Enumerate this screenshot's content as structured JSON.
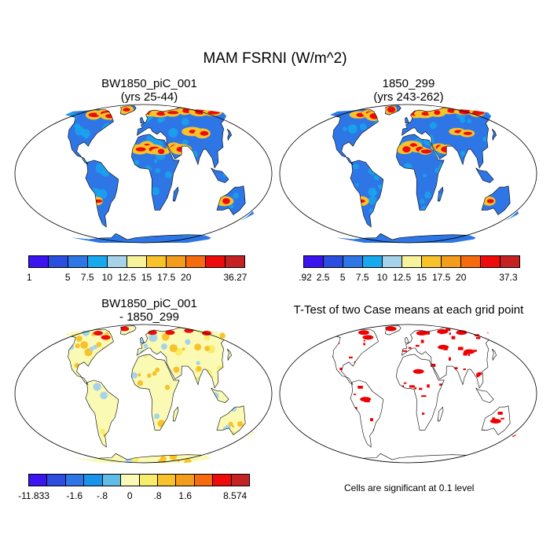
{
  "figure": {
    "title": "MAM FSRNI (W/m^2)"
  },
  "panels": [
    {
      "id": "p1",
      "title_line1": "BW1850_piC_001",
      "title_line2": "(yrs 25-44)",
      "type": "field"
    },
    {
      "id": "p2",
      "title_line1": "1850_299",
      "title_line2": "(yrs 243-262)",
      "type": "field"
    },
    {
      "id": "p3",
      "title_line1": "BW1850_piC_001",
      "title_line2": "- 1850_299",
      "type": "difference"
    },
    {
      "id": "p4",
      "title_line1": "T-Test of two Case means at each grid point",
      "title_line2": "",
      "type": "significance"
    }
  ],
  "colorbars": {
    "top_left": {
      "colors": [
        "#3b14f0",
        "#2b4ee0",
        "#2e76e6",
        "#17a8ee",
        "#a6d3ea",
        "#f7f39a",
        "#f7c22a",
        "#f49d1c",
        "#f66b10",
        "#ee0b0b",
        "#c52323"
      ],
      "labels": [
        "1",
        "5",
        "7.5",
        "10",
        "12.5",
        "15",
        "17.5",
        "20",
        "36.27"
      ]
    },
    "top_right": {
      "colors": [
        "#3b14f0",
        "#2b4ee0",
        "#2e76e6",
        "#17a8ee",
        "#a6d3ea",
        "#f7f39a",
        "#f7c22a",
        "#f49d1c",
        "#f66b10",
        "#ee0b0b",
        "#c52323"
      ],
      "labels": [
        ".92",
        "2.5",
        "5",
        "7.5",
        "10",
        "12.5",
        "15",
        "17.5",
        "20",
        "37.3"
      ]
    },
    "bottom": {
      "colors": [
        "#3b14f0",
        "#2b4ee0",
        "#2e76e6",
        "#1a93ea",
        "#5fbde8",
        "#fafab4",
        "#f7ec6c",
        "#f7c22a",
        "#f49d1c",
        "#f66b10",
        "#ee0b0b",
        "#c52323"
      ],
      "labels": [
        "-11.833",
        "-1.6",
        "-.8",
        "0",
        ".8",
        "1.6",
        "8.574"
      ]
    }
  },
  "significance_note": "Cells are significant at 0.1 level",
  "map_colors": {
    "ocean": "#ffffff",
    "land_low": "#2e76e6",
    "land_mid": "#17a8ee",
    "land_high": "#f7c22a",
    "land_hot": "#ee0b0b",
    "diff_base": "#fafab4",
    "diff_pos": "#f7c22a",
    "diff_neg": "#a6d3ea",
    "sig": "#ee0000",
    "coast": "#000000"
  }
}
